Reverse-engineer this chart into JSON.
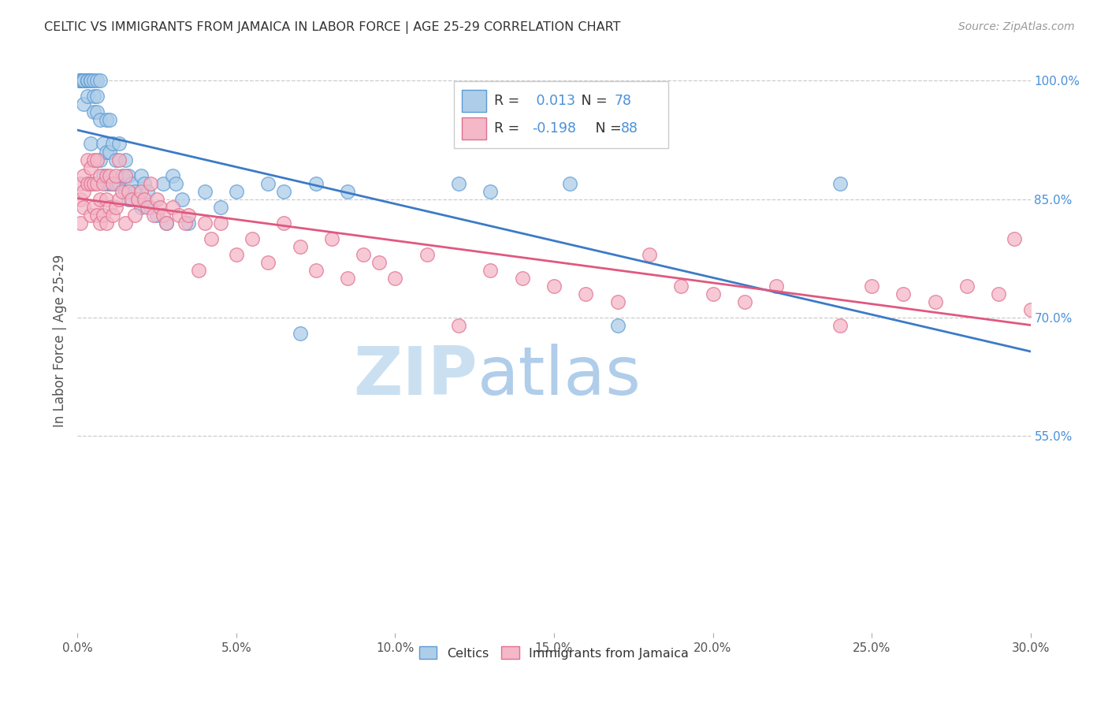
{
  "title": "CELTIC VS IMMIGRANTS FROM JAMAICA IN LABOR FORCE | AGE 25-29 CORRELATION CHART",
  "source_text": "Source: ZipAtlas.com",
  "ylabel": "In Labor Force | Age 25-29",
  "xmin": 0.0,
  "xmax": 0.3,
  "ymin": 0.3,
  "ymax": 1.04,
  "xtick_labels": [
    "0.0%",
    "5.0%",
    "10.0%",
    "15.0%",
    "20.0%",
    "25.0%",
    "30.0%"
  ],
  "xtick_vals": [
    0.0,
    0.05,
    0.1,
    0.15,
    0.2,
    0.25,
    0.3
  ],
  "ytick_labels_right": [
    "100.0%",
    "85.0%",
    "70.0%",
    "55.0%"
  ],
  "ytick_vals_right": [
    1.0,
    0.85,
    0.7,
    0.55
  ],
  "legend_labels": [
    "Celtics",
    "Immigrants from Jamaica"
  ],
  "R_celtic": 0.013,
  "N_celtic": 78,
  "R_jamaica": -0.198,
  "N_jamaica": 88,
  "color_celtic": "#aecde8",
  "color_jamaica": "#f4b8c8",
  "color_celtic_edge": "#5b9bd5",
  "color_jamaica_edge": "#e07090",
  "color_celtic_line": "#3c7ac7",
  "color_jamaica_line": "#e05880",
  "watermark_zip": "ZIP",
  "watermark_atlas": "atlas",
  "watermark_color_zip": "#c8dff0",
  "watermark_color_atlas": "#b0cce8",
  "celtic_x": [
    0.001,
    0.001,
    0.001,
    0.001,
    0.001,
    0.001,
    0.001,
    0.001,
    0.002,
    0.002,
    0.002,
    0.002,
    0.002,
    0.002,
    0.003,
    0.003,
    0.003,
    0.003,
    0.004,
    0.004,
    0.004,
    0.004,
    0.005,
    0.005,
    0.005,
    0.006,
    0.006,
    0.006,
    0.007,
    0.007,
    0.007,
    0.008,
    0.008,
    0.009,
    0.009,
    0.009,
    0.01,
    0.01,
    0.01,
    0.011,
    0.011,
    0.012,
    0.012,
    0.013,
    0.013,
    0.014,
    0.015,
    0.015,
    0.016,
    0.016,
    0.017,
    0.018,
    0.019,
    0.02,
    0.02,
    0.021,
    0.022,
    0.023,
    0.025,
    0.027,
    0.028,
    0.03,
    0.031,
    0.033,
    0.035,
    0.04,
    0.045,
    0.05,
    0.06,
    0.065,
    0.07,
    0.075,
    0.085,
    0.12,
    0.13,
    0.155,
    0.17,
    0.24
  ],
  "celtic_y": [
    1.0,
    1.0,
    1.0,
    1.0,
    1.0,
    1.0,
    1.0,
    1.0,
    1.0,
    1.0,
    1.0,
    1.0,
    1.0,
    0.97,
    1.0,
    1.0,
    1.0,
    0.98,
    1.0,
    1.0,
    1.0,
    0.92,
    1.0,
    0.98,
    0.96,
    1.0,
    0.98,
    0.96,
    1.0,
    0.95,
    0.9,
    0.92,
    0.88,
    0.95,
    0.91,
    0.87,
    0.95,
    0.91,
    0.87,
    0.92,
    0.87,
    0.9,
    0.87,
    0.92,
    0.87,
    0.88,
    0.9,
    0.86,
    0.88,
    0.85,
    0.87,
    0.86,
    0.85,
    0.88,
    0.84,
    0.87,
    0.86,
    0.84,
    0.83,
    0.87,
    0.82,
    0.88,
    0.87,
    0.85,
    0.82,
    0.86,
    0.84,
    0.86,
    0.87,
    0.86,
    0.68,
    0.87,
    0.86,
    0.87,
    0.86,
    0.87,
    0.69,
    0.87
  ],
  "jamaica_x": [
    0.001,
    0.001,
    0.001,
    0.002,
    0.002,
    0.002,
    0.003,
    0.003,
    0.004,
    0.004,
    0.004,
    0.005,
    0.005,
    0.005,
    0.006,
    0.006,
    0.006,
    0.007,
    0.007,
    0.007,
    0.008,
    0.008,
    0.009,
    0.009,
    0.009,
    0.01,
    0.01,
    0.011,
    0.011,
    0.012,
    0.012,
    0.013,
    0.013,
    0.014,
    0.015,
    0.015,
    0.016,
    0.017,
    0.018,
    0.019,
    0.02,
    0.021,
    0.022,
    0.023,
    0.024,
    0.025,
    0.026,
    0.027,
    0.028,
    0.03,
    0.032,
    0.034,
    0.035,
    0.038,
    0.04,
    0.042,
    0.045,
    0.05,
    0.055,
    0.06,
    0.065,
    0.07,
    0.075,
    0.08,
    0.085,
    0.09,
    0.095,
    0.1,
    0.11,
    0.12,
    0.13,
    0.14,
    0.15,
    0.16,
    0.17,
    0.18,
    0.19,
    0.2,
    0.21,
    0.22,
    0.24,
    0.25,
    0.26,
    0.27,
    0.28,
    0.29,
    0.295,
    0.3
  ],
  "jamaica_y": [
    0.87,
    0.85,
    0.82,
    0.88,
    0.86,
    0.84,
    0.9,
    0.87,
    0.89,
    0.87,
    0.83,
    0.9,
    0.87,
    0.84,
    0.9,
    0.87,
    0.83,
    0.88,
    0.85,
    0.82,
    0.87,
    0.83,
    0.88,
    0.85,
    0.82,
    0.88,
    0.84,
    0.87,
    0.83,
    0.88,
    0.84,
    0.9,
    0.85,
    0.86,
    0.88,
    0.82,
    0.86,
    0.85,
    0.83,
    0.85,
    0.86,
    0.85,
    0.84,
    0.87,
    0.83,
    0.85,
    0.84,
    0.83,
    0.82,
    0.84,
    0.83,
    0.82,
    0.83,
    0.76,
    0.82,
    0.8,
    0.82,
    0.78,
    0.8,
    0.77,
    0.82,
    0.79,
    0.76,
    0.8,
    0.75,
    0.78,
    0.77,
    0.75,
    0.78,
    0.69,
    0.76,
    0.75,
    0.74,
    0.73,
    0.72,
    0.78,
    0.74,
    0.73,
    0.72,
    0.74,
    0.69,
    0.74,
    0.73,
    0.72,
    0.74,
    0.73,
    0.8,
    0.71
  ]
}
